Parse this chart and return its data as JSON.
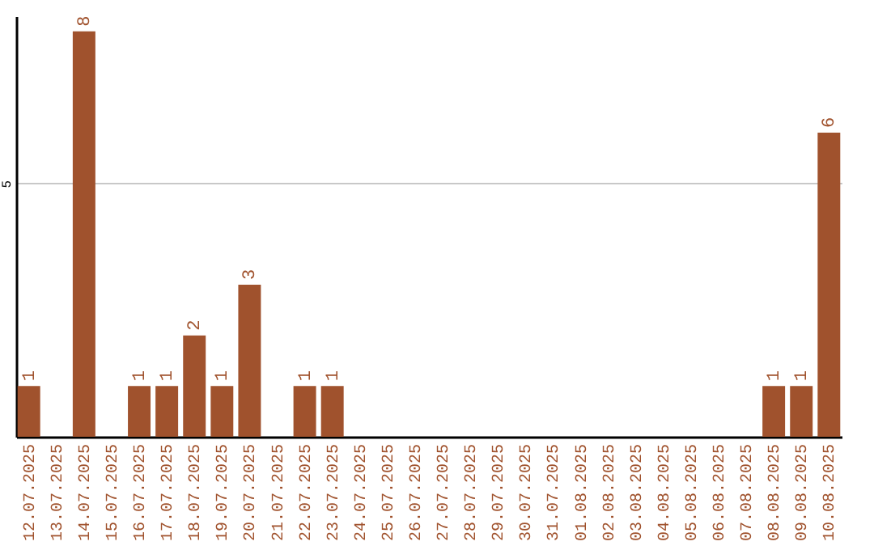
{
  "chart_data": {
    "type": "bar",
    "categories": [
      "12.07.2025",
      "13.07.2025",
      "14.07.2025",
      "15.07.2025",
      "16.07.2025",
      "17.07.2025",
      "18.07.2025",
      "19.07.2025",
      "20.07.2025",
      "21.07.2025",
      "22.07.2025",
      "23.07.2025",
      "24.07.2025",
      "25.07.2025",
      "26.07.2025",
      "27.07.2025",
      "28.07.2025",
      "29.07.2025",
      "30.07.2025",
      "31.07.2025",
      "01.08.2025",
      "02.08.2025",
      "03.08.2025",
      "04.08.2025",
      "05.08.2025",
      "06.08.2025",
      "07.08.2025",
      "08.08.2025",
      "09.08.2025",
      "10.08.2025"
    ],
    "values": [
      1,
      0,
      8,
      0,
      1,
      1,
      2,
      1,
      3,
      0,
      1,
      1,
      0,
      0,
      0,
      0,
      0,
      0,
      0,
      0,
      0,
      0,
      0,
      0,
      0,
      0,
      0,
      1,
      1,
      6
    ],
    "value_labels": [
      "1",
      null,
      "8",
      null,
      "1",
      "1",
      "2",
      "1",
      "3",
      null,
      "1",
      "1",
      null,
      null,
      null,
      null,
      null,
      null,
      null,
      null,
      null,
      null,
      null,
      null,
      null,
      null,
      null,
      "1",
      "1",
      "6"
    ],
    "color": "#a0522d",
    "ylim": [
      0,
      8.3
    ],
    "yticks": [
      5
    ],
    "grid": "y"
  }
}
